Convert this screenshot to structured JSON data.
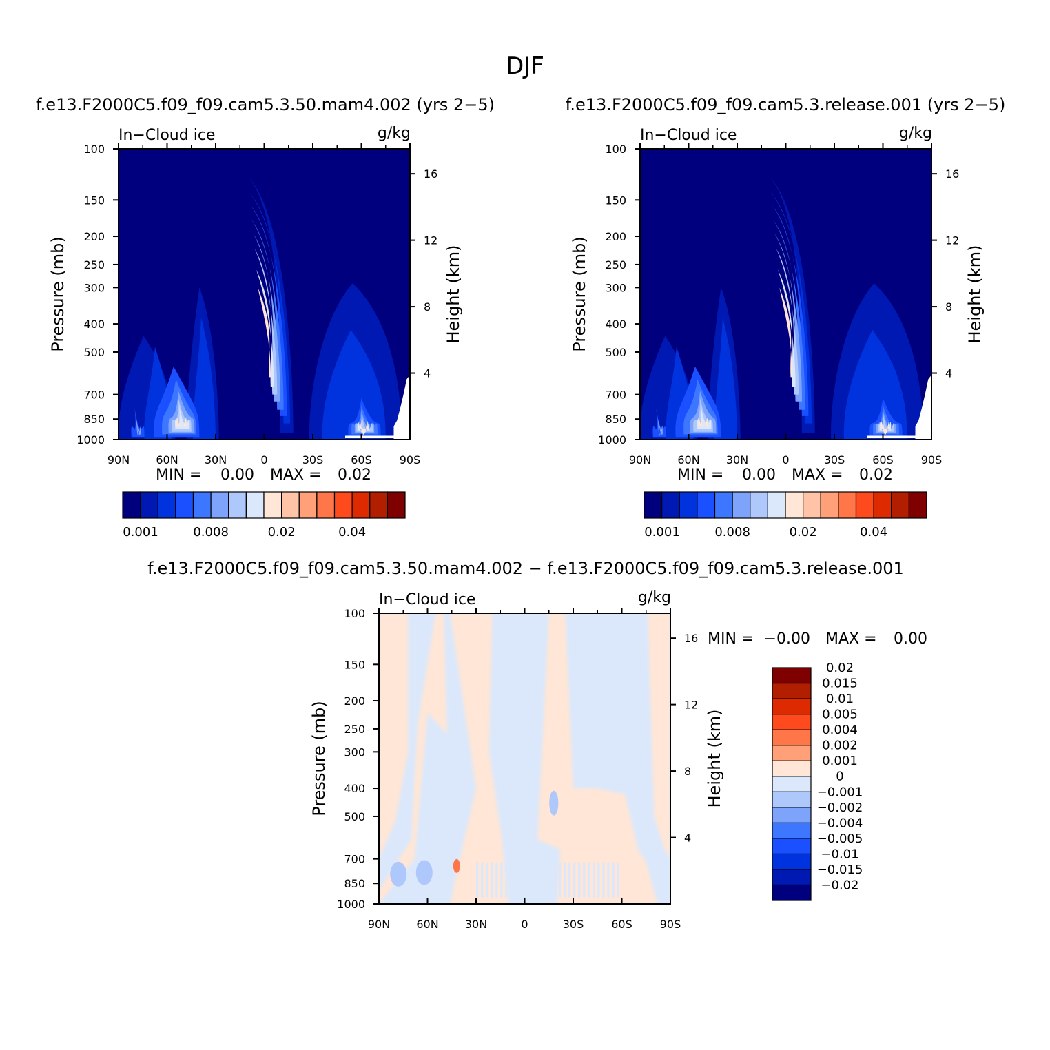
{
  "page": {
    "title": "DJF"
  },
  "panels": [
    {
      "heading": "f.e13.F2000C5.f09_f09.cam5.3.50.mam4.002 (yrs 2−5)",
      "variable_label": "In−Cloud ice",
      "units_label": "g/kg",
      "left_axis_title": "Pressure (mb)",
      "right_axis_title": "Height (km)",
      "stats": {
        "min_label": "MIN =",
        "min_value": "0.00",
        "max_label": "MAX =",
        "max_value": "0.02"
      }
    },
    {
      "heading": "f.e13.F2000C5.f09_f09.cam5.3.release.001 (yrs 2−5)",
      "variable_label": "In−Cloud ice",
      "units_label": "g/kg",
      "left_axis_title": "Pressure (mb)",
      "right_axis_title": "Height (km)",
      "stats": {
        "min_label": "MIN =",
        "min_value": "0.00",
        "max_label": "MAX =",
        "max_value": "0.02"
      }
    },
    {
      "heading": "f.e13.F2000C5.f09_f09.cam5.3.50.mam4.002 − f.e13.F2000C5.f09_f09.cam5.3.release.001",
      "variable_label": "In−Cloud ice",
      "units_label": "g/kg",
      "left_axis_title": "Pressure (mb)",
      "right_axis_title": "Height (km)",
      "stats": {
        "min_label": "MIN =",
        "min_value": "−0.00",
        "max_label": "MAX =",
        "max_value": "0.00"
      }
    }
  ],
  "chart_data": [
    {
      "type": "heatmap",
      "title": "f.e13.F2000C5.f09_f09.cam5.3.50.mam4.002 (yrs 2−5)",
      "xlabel": "",
      "ylabel": "Pressure (mb)",
      "y2label": "Height (km)",
      "x_tick_labels": [
        "90N",
        "60N",
        "30N",
        "0",
        "30S",
        "60S",
        "90S"
      ],
      "x_tick_values": [
        90,
        60,
        30,
        0,
        -30,
        -60,
        -90
      ],
      "y_tick_labels": [
        "100",
        "150",
        "200",
        "250",
        "300",
        "400",
        "500",
        "700",
        "850",
        "1000"
      ],
      "y_tick_values": [
        100,
        150,
        200,
        250,
        300,
        400,
        500,
        700,
        850,
        1000
      ],
      "y2_tick_labels": [
        "16",
        "12",
        "8",
        "4"
      ],
      "y2_tick_values": [
        16,
        12,
        8,
        4
      ],
      "ylim": [
        1000,
        100
      ],
      "y_scale": "log",
      "colorbar": {
        "orientation": "horizontal",
        "colors": [
          "#00007f",
          "#0019b2",
          "#0033dd",
          "#1a50ff",
          "#3d76ff",
          "#7da3fb",
          "#afc8fb",
          "#dbe8fb",
          "#ffe6d6",
          "#ffc4a8",
          "#ffa079",
          "#ff7749",
          "#ff4a1e",
          "#dd2a00",
          "#b21f00",
          "#7f0000"
        ],
        "tick_labels": [
          "0.001",
          "0.008",
          "0.02",
          "0.04"
        ]
      },
      "features": [
        {
          "lat": 5,
          "p": 480,
          "level": 8
        },
        {
          "lat": 48,
          "p": 820,
          "level": 8
        },
        {
          "lat": -60,
          "p": 860,
          "level": 8
        },
        {
          "lat": 2,
          "p": 330,
          "level": 5
        },
        {
          "lat": 45,
          "p": 420,
          "level": 2
        }
      ]
    },
    {
      "type": "heatmap",
      "title": "f.e13.F2000C5.f09_f09.cam5.3.release.001 (yrs 2−5)",
      "xlabel": "",
      "ylabel": "Pressure (mb)",
      "y2label": "Height (km)",
      "x_tick_labels": [
        "90N",
        "60N",
        "30N",
        "0",
        "30S",
        "60S",
        "90S"
      ],
      "x_tick_values": [
        90,
        60,
        30,
        0,
        -30,
        -60,
        -90
      ],
      "y_tick_labels": [
        "100",
        "150",
        "200",
        "250",
        "300",
        "400",
        "500",
        "700",
        "850",
        "1000"
      ],
      "y_tick_values": [
        100,
        150,
        200,
        250,
        300,
        400,
        500,
        700,
        850,
        1000
      ],
      "y2_tick_labels": [
        "16",
        "12",
        "8",
        "4"
      ],
      "y2_tick_values": [
        16,
        12,
        8,
        4
      ],
      "ylim": [
        1000,
        100
      ],
      "y_scale": "log",
      "colorbar": {
        "orientation": "horizontal",
        "colors": [
          "#00007f",
          "#0019b2",
          "#0033dd",
          "#1a50ff",
          "#3d76ff",
          "#7da3fb",
          "#afc8fb",
          "#dbe8fb",
          "#ffe6d6",
          "#ffc4a8",
          "#ffa079",
          "#ff7749",
          "#ff4a1e",
          "#dd2a00",
          "#b21f00",
          "#7f0000"
        ],
        "tick_labels": [
          "0.001",
          "0.008",
          "0.02",
          "0.04"
        ]
      },
      "features": [
        {
          "lat": 5,
          "p": 480,
          "level": 8
        },
        {
          "lat": 48,
          "p": 820,
          "level": 8
        },
        {
          "lat": -60,
          "p": 860,
          "level": 8
        },
        {
          "lat": 2,
          "p": 330,
          "level": 5
        },
        {
          "lat": 45,
          "p": 420,
          "level": 2
        }
      ]
    },
    {
      "type": "heatmap",
      "title": "f.e13.F2000C5.f09_f09.cam5.3.50.mam4.002 − f.e13.F2000C5.f09_f09.cam5.3.release.001",
      "xlabel": "",
      "ylabel": "Pressure (mb)",
      "y2label": "Height (km)",
      "x_tick_labels": [
        "90N",
        "60N",
        "30N",
        "0",
        "30S",
        "60S",
        "90S"
      ],
      "x_tick_values": [
        90,
        60,
        30,
        0,
        -30,
        -60,
        -90
      ],
      "y_tick_labels": [
        "100",
        "150",
        "200",
        "250",
        "300",
        "400",
        "500",
        "700",
        "850",
        "1000"
      ],
      "y_tick_values": [
        100,
        150,
        200,
        250,
        300,
        400,
        500,
        700,
        850,
        1000
      ],
      "y2_tick_labels": [
        "16",
        "12",
        "8",
        "4"
      ],
      "y2_tick_values": [
        16,
        12,
        8,
        4
      ],
      "ylim": [
        1000,
        100
      ],
      "y_scale": "log",
      "colorbar": {
        "orientation": "vertical",
        "colors": [
          "#00007f",
          "#0019b2",
          "#0033dd",
          "#1a50ff",
          "#3d76ff",
          "#7da3fb",
          "#afc8fb",
          "#dbe8fb",
          "#ffe6d6",
          "#ffa079",
          "#ff7749",
          "#ff4a1e",
          "#dd2a00",
          "#b21f00",
          "#7f0000"
        ],
        "tick_labels": [
          "−0.02",
          "−0.015",
          "−0.01",
          "−0.005",
          "−0.004",
          "−0.002",
          "−0.001",
          "0",
          "0.001",
          "0.002",
          "0.004",
          "0.005",
          "0.01",
          "0.015",
          "0.02"
        ]
      },
      "regions": [
        {
          "lat_range": [
            90,
            77
          ],
          "sign": "positive"
        },
        {
          "lat_range": [
            43,
            18
          ],
          "sign": "positive"
        },
        {
          "lat_range": [
            -25,
            -55
          ],
          "sign": "positive"
        },
        {
          "lat_range": [
            -75,
            -90
          ],
          "sign": "positive"
        },
        {
          "lat_range": [
            75,
            43
          ],
          "sign": "negative"
        },
        {
          "lat_range": [
            18,
            -25
          ],
          "sign": "negative"
        },
        {
          "lat_range": [
            -55,
            -75
          ],
          "sign": "negative"
        }
      ]
    }
  ]
}
